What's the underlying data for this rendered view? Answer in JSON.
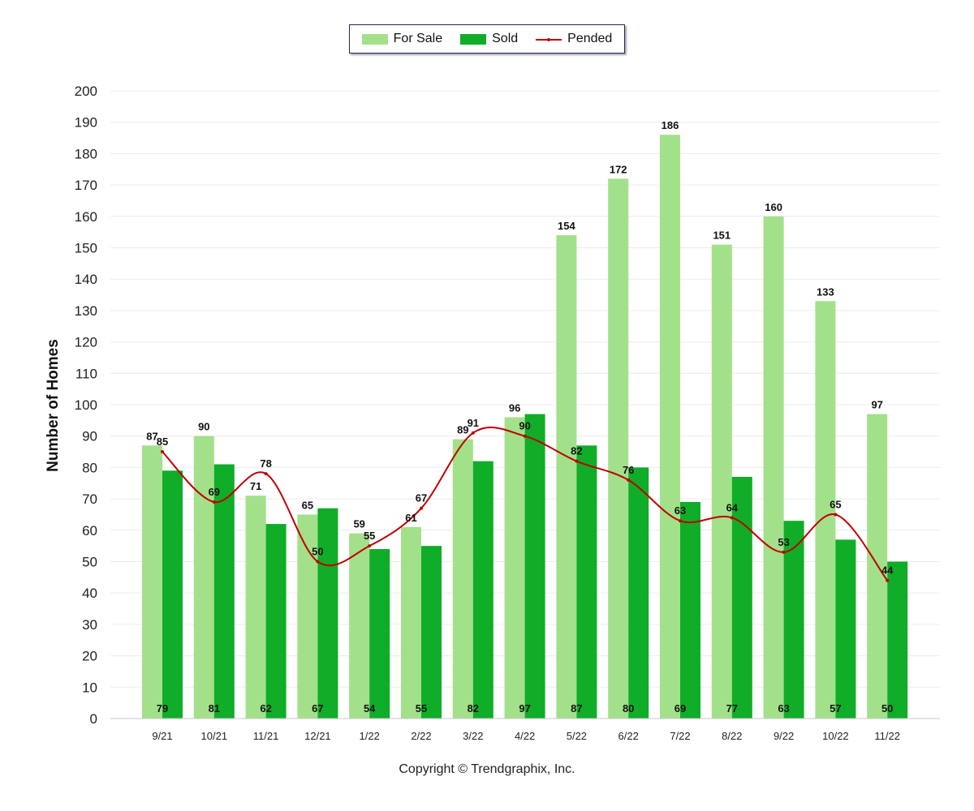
{
  "chart_data": {
    "type": "bar",
    "categories": [
      "9/21",
      "10/21",
      "11/21",
      "12/21",
      "1/22",
      "2/22",
      "3/22",
      "4/22",
      "5/22",
      "6/22",
      "7/22",
      "8/22",
      "9/22",
      "10/22",
      "11/22"
    ],
    "series": [
      {
        "name": "For Sale",
        "type": "bar",
        "color": "#a3e08a",
        "values": [
          87,
          90,
          71,
          65,
          59,
          61,
          89,
          96,
          154,
          172,
          186,
          151,
          160,
          133,
          97
        ]
      },
      {
        "name": "Sold",
        "type": "bar",
        "color": "#10ad28",
        "values": [
          79,
          81,
          62,
          67,
          54,
          55,
          82,
          97,
          87,
          80,
          69,
          77,
          63,
          57,
          50
        ]
      },
      {
        "name": "Pended",
        "type": "line",
        "color": "#c00000",
        "values": [
          85,
          69,
          78,
          50,
          55,
          67,
          91,
          90,
          82,
          76,
          63,
          64,
          53,
          65,
          44
        ]
      }
    ],
    "ylabel": "Number of Homes",
    "ylim": [
      0,
      200
    ],
    "yticks": [
      0,
      10,
      20,
      30,
      40,
      50,
      60,
      70,
      80,
      90,
      100,
      110,
      120,
      130,
      140,
      150,
      160,
      170,
      180,
      190,
      200
    ],
    "grid": true,
    "legend_position": "top-center"
  },
  "footer": {
    "copyright": "Copyright © Trendgraphix, Inc."
  }
}
